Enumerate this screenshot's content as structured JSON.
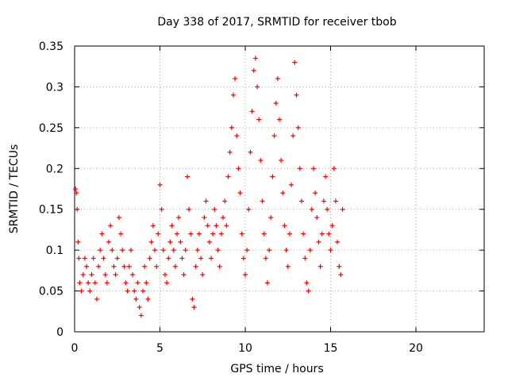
{
  "chart_data": {
    "type": "scatter",
    "title": "Day 338 of 2017, SRMTID for receiver tbob",
    "xlabel": "GPS time / hours",
    "ylabel": "SRMTID / TECUs",
    "xlim": [
      0,
      24
    ],
    "ylim": [
      0,
      0.35
    ],
    "x_ticks": [
      "0",
      "5",
      "10",
      "15",
      "20"
    ],
    "y_ticks": [
      "0",
      "0.05",
      "0.1",
      "0.15",
      "0.2",
      "0.25",
      "0.3",
      "0.35"
    ],
    "grid": true,
    "marker": "+",
    "series": [
      {
        "name": "SRMTID",
        "color": "#ff0000",
        "points": [
          [
            0.05,
            0.175
          ],
          [
            0.1,
            0.17
          ],
          [
            0.15,
            0.15
          ],
          [
            0.2,
            0.11
          ],
          [
            0.25,
            0.09
          ],
          [
            0.3,
            0.06
          ],
          [
            0.4,
            0.05
          ],
          [
            0.5,
            0.07
          ],
          [
            0.6,
            0.09
          ],
          [
            0.7,
            0.08
          ],
          [
            0.8,
            0.06
          ],
          [
            0.9,
            0.05
          ],
          [
            1.0,
            0.07
          ],
          [
            1.1,
            0.09
          ],
          [
            1.2,
            0.06
          ],
          [
            1.3,
            0.04
          ],
          [
            1.4,
            0.08
          ],
          [
            1.5,
            0.1
          ],
          [
            1.6,
            0.12
          ],
          [
            1.7,
            0.09
          ],
          [
            1.8,
            0.07
          ],
          [
            1.9,
            0.06
          ],
          [
            2.0,
            0.11
          ],
          [
            2.1,
            0.13
          ],
          [
            2.2,
            0.1
          ],
          [
            2.3,
            0.08
          ],
          [
            2.4,
            0.07
          ],
          [
            2.5,
            0.09
          ],
          [
            2.6,
            0.14
          ],
          [
            2.7,
            0.12
          ],
          [
            2.8,
            0.1
          ],
          [
            2.9,
            0.08
          ],
          [
            3.0,
            0.06
          ],
          [
            3.1,
            0.05
          ],
          [
            3.2,
            0.08
          ],
          [
            3.3,
            0.1
          ],
          [
            3.4,
            0.07
          ],
          [
            3.5,
            0.05
          ],
          [
            3.6,
            0.04
          ],
          [
            3.7,
            0.06
          ],
          [
            3.8,
            0.03
          ],
          [
            3.9,
            0.02
          ],
          [
            4.0,
            0.05
          ],
          [
            4.1,
            0.08
          ],
          [
            4.2,
            0.06
          ],
          [
            4.3,
            0.04
          ],
          [
            4.4,
            0.09
          ],
          [
            4.5,
            0.11
          ],
          [
            4.6,
            0.13
          ],
          [
            4.7,
            0.1
          ],
          [
            4.8,
            0.08
          ],
          [
            4.9,
            0.12
          ],
          [
            5.0,
            0.18
          ],
          [
            5.1,
            0.15
          ],
          [
            5.2,
            0.1
          ],
          [
            5.3,
            0.07
          ],
          [
            5.4,
            0.06
          ],
          [
            5.5,
            0.09
          ],
          [
            5.6,
            0.11
          ],
          [
            5.7,
            0.13
          ],
          [
            5.8,
            0.1
          ],
          [
            5.9,
            0.08
          ],
          [
            6.0,
            0.12
          ],
          [
            6.1,
            0.14
          ],
          [
            6.2,
            0.11
          ],
          [
            6.3,
            0.09
          ],
          [
            6.4,
            0.07
          ],
          [
            6.5,
            0.1
          ],
          [
            6.6,
            0.19
          ],
          [
            6.7,
            0.15
          ],
          [
            6.8,
            0.12
          ],
          [
            6.9,
            0.04
          ],
          [
            7.0,
            0.03
          ],
          [
            7.1,
            0.08
          ],
          [
            7.2,
            0.1
          ],
          [
            7.3,
            0.12
          ],
          [
            7.4,
            0.09
          ],
          [
            7.5,
            0.07
          ],
          [
            7.6,
            0.14
          ],
          [
            7.7,
            0.16
          ],
          [
            7.8,
            0.13
          ],
          [
            7.9,
            0.11
          ],
          [
            8.0,
            0.09
          ],
          [
            8.1,
            0.12
          ],
          [
            8.2,
            0.15
          ],
          [
            8.3,
            0.13
          ],
          [
            8.4,
            0.1
          ],
          [
            8.5,
            0.08
          ],
          [
            8.6,
            0.12
          ],
          [
            8.7,
            0.14
          ],
          [
            8.8,
            0.16
          ],
          [
            8.9,
            0.13
          ],
          [
            9.0,
            0.19
          ],
          [
            9.1,
            0.22
          ],
          [
            9.2,
            0.25
          ],
          [
            9.3,
            0.29
          ],
          [
            9.4,
            0.31
          ],
          [
            9.5,
            0.24
          ],
          [
            9.6,
            0.2
          ],
          [
            9.7,
            0.17
          ],
          [
            9.8,
            0.12
          ],
          [
            9.9,
            0.09
          ],
          [
            10.0,
            0.07
          ],
          [
            10.1,
            0.1
          ],
          [
            10.2,
            0.15
          ],
          [
            10.3,
            0.22
          ],
          [
            10.4,
            0.27
          ],
          [
            10.5,
            0.32
          ],
          [
            10.6,
            0.335
          ],
          [
            10.7,
            0.3
          ],
          [
            10.8,
            0.26
          ],
          [
            10.9,
            0.21
          ],
          [
            11.0,
            0.16
          ],
          [
            11.1,
            0.12
          ],
          [
            11.2,
            0.09
          ],
          [
            11.3,
            0.06
          ],
          [
            11.4,
            0.1
          ],
          [
            11.5,
            0.14
          ],
          [
            11.6,
            0.19
          ],
          [
            11.7,
            0.24
          ],
          [
            11.8,
            0.28
          ],
          [
            11.9,
            0.31
          ],
          [
            12.0,
            0.26
          ],
          [
            12.1,
            0.21
          ],
          [
            12.2,
            0.17
          ],
          [
            12.3,
            0.13
          ],
          [
            12.4,
            0.1
          ],
          [
            12.5,
            0.08
          ],
          [
            12.6,
            0.12
          ],
          [
            12.7,
            0.18
          ],
          [
            12.8,
            0.24
          ],
          [
            12.9,
            0.33
          ],
          [
            13.0,
            0.29
          ],
          [
            13.1,
            0.25
          ],
          [
            13.2,
            0.2
          ],
          [
            13.3,
            0.16
          ],
          [
            13.4,
            0.12
          ],
          [
            13.5,
            0.09
          ],
          [
            13.6,
            0.06
          ],
          [
            13.7,
            0.05
          ],
          [
            13.8,
            0.1
          ],
          [
            13.9,
            0.15
          ],
          [
            14.0,
            0.2
          ],
          [
            14.1,
            0.17
          ],
          [
            14.2,
            0.14
          ],
          [
            14.3,
            0.11
          ],
          [
            14.4,
            0.08
          ],
          [
            14.5,
            0.12
          ],
          [
            14.6,
            0.16
          ],
          [
            14.7,
            0.19
          ],
          [
            14.8,
            0.15
          ],
          [
            14.9,
            0.12
          ],
          [
            15.0,
            0.1
          ],
          [
            15.1,
            0.13
          ],
          [
            15.2,
            0.2
          ],
          [
            15.3,
            0.16
          ],
          [
            15.4,
            0.11
          ],
          [
            15.5,
            0.08
          ],
          [
            15.6,
            0.07
          ],
          [
            15.7,
            0.15
          ]
        ]
      }
    ]
  }
}
